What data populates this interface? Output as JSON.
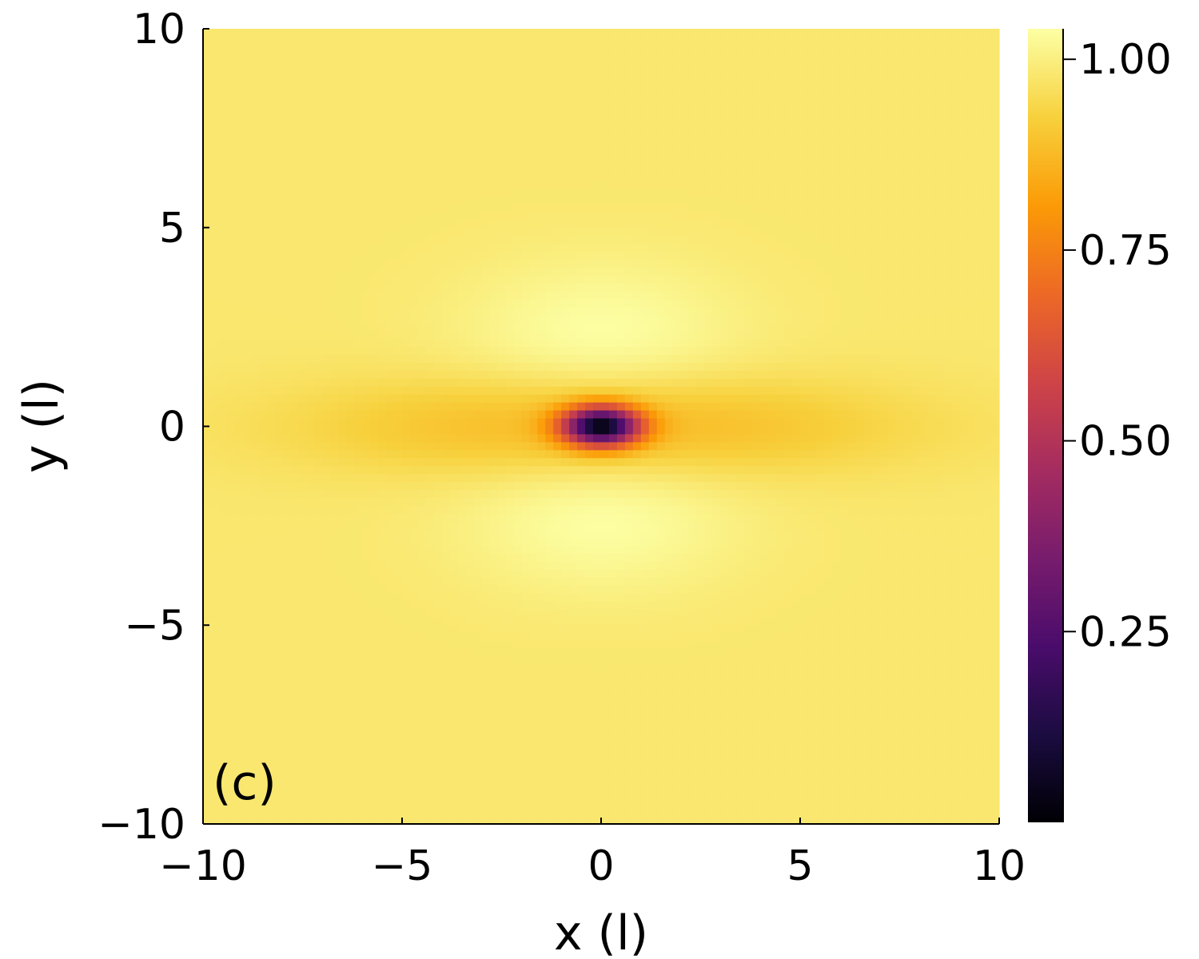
{
  "chart_data": {
    "type": "heatmap",
    "title": "",
    "xlabel": "x (l)",
    "ylabel": "y (l)",
    "xlim": [
      -10,
      10
    ],
    "ylim": [
      -10,
      10
    ],
    "xticks": [
      -10,
      -5,
      0,
      5,
      10
    ],
    "yticks": [
      -10,
      -5,
      0,
      5,
      10
    ],
    "xtick_labels": [
      "−10",
      "−5",
      "0",
      "5",
      "10"
    ],
    "ytick_labels": [
      "−10",
      "−5",
      "0",
      "5",
      "10"
    ],
    "panel_label": "(c)",
    "grid": false,
    "colormap": "inferno",
    "colorbar": {
      "range": [
        0.0,
        1.04
      ],
      "ticks": [
        0.25,
        0.5,
        0.75,
        1.0
      ],
      "tick_labels": [
        "0.25",
        "0.50",
        "0.75",
        "1.00"
      ],
      "stops": [
        "#000004",
        "#1b0c41",
        "#4a0c6b",
        "#781c6d",
        "#a52c60",
        "#cf4446",
        "#ed6925",
        "#fb9b06",
        "#f7d13d",
        "#fcffa4"
      ]
    },
    "field": {
      "background_value": 0.98,
      "minimum": {
        "x": 0,
        "y": 0,
        "value": 0.0
      },
      "core_radius_x": 0.9,
      "core_radius_y": 0.45,
      "horizontal_dip_value": 0.86,
      "horizontal_dip_extent_x": 7,
      "horizontal_dip_extent_y": 0.9,
      "bright_lobes": [
        {
          "x": 0,
          "y": 2.3,
          "value": 1.04
        },
        {
          "x": 0,
          "y": -2.3,
          "value": 1.04
        }
      ]
    }
  }
}
